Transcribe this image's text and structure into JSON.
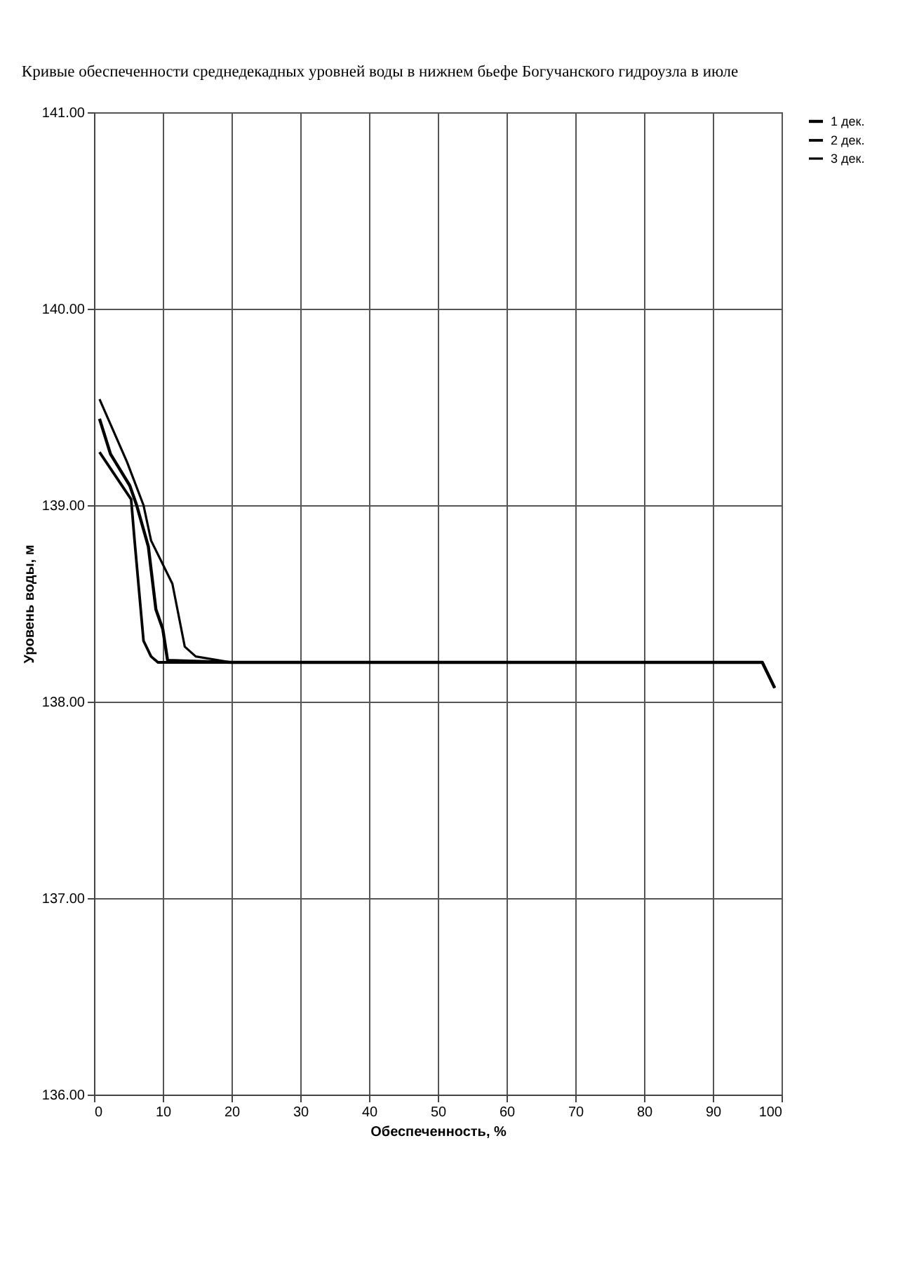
{
  "chart_data": {
    "type": "line",
    "title": "Кривые обеспеченности среднедекадных уровней воды в нижнем бьефе Богучанского гидроузла в июле",
    "xlabel": "Обеспеченность, %",
    "ylabel": "Уровень воды, м",
    "xlim": [
      0,
      100
    ],
    "ylim": [
      136,
      141
    ],
    "xticks": [
      0,
      10,
      20,
      30,
      40,
      50,
      60,
      70,
      80,
      90,
      100
    ],
    "yticks": [
      {
        "value": 136,
        "label": "136.00"
      },
      {
        "value": 137,
        "label": "137.00"
      },
      {
        "value": 138,
        "label": "138.00"
      },
      {
        "value": 139,
        "label": "139.00"
      },
      {
        "value": 140,
        "label": "140.00"
      },
      {
        "value": 141,
        "label": "141.00"
      }
    ],
    "grid": true,
    "legend": "right",
    "marker": "none",
    "line_style": "solid",
    "series": [
      {
        "name": "1 дек.",
        "color": "#000000",
        "x": [
          0.8,
          2.4,
          5.2,
          6.2,
          7.9,
          9.0,
          10.0,
          10.7,
          20,
          97.2,
          99.0
        ],
        "values": [
          139.44,
          139.26,
          139.1,
          139.0,
          138.79,
          138.47,
          138.37,
          138.21,
          138.2,
          138.2,
          138.07
        ]
      },
      {
        "name": "2 дек.",
        "color": "#000000",
        "x": [
          0.8,
          5.4,
          5.9,
          7.2,
          8.3,
          9.3,
          20,
          97.2,
          99.0
        ],
        "values": [
          139.27,
          139.03,
          138.82,
          138.31,
          138.23,
          138.2,
          138.2,
          138.2,
          138.07
        ]
      },
      {
        "name": "3 дек.",
        "color": "#000000",
        "x": [
          0.8,
          4.8,
          7.2,
          8.3,
          11.4,
          13.2,
          14.8,
          20,
          97.2,
          99.0
        ],
        "values": [
          139.54,
          139.22,
          139.0,
          138.82,
          138.6,
          138.28,
          138.23,
          138.2,
          138.2,
          138.07
        ]
      }
    ]
  }
}
